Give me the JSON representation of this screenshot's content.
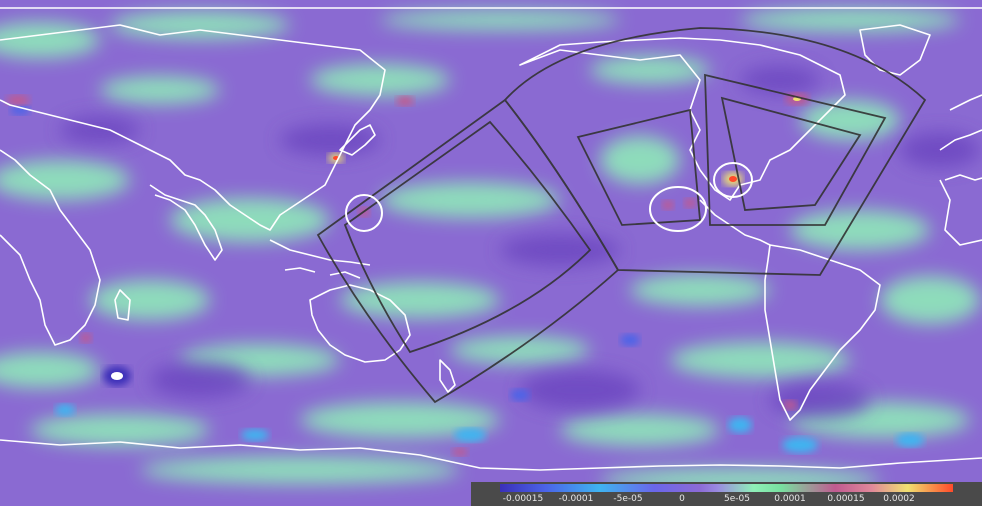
{
  "colorbar": {
    "ticks": [
      "-0.00015",
      "-0.0001",
      "-5e-05",
      "0",
      "5e-05",
      "0.0001",
      "0.00015",
      "0.0002"
    ],
    "colors": [
      "#3a2fb8",
      "#4b63e8",
      "#3fb4f0",
      "#6a66ea",
      "#8c6ad6",
      "#8ff0b8",
      "#c05a90",
      "#f0e070",
      "#ff4a2a"
    ]
  },
  "map": {
    "background_color": "#8a6ad2",
    "coastline_color": "#ffffff",
    "region_outline_color": "#333333",
    "highlight_circles": 3,
    "outlined_regions": 4
  }
}
